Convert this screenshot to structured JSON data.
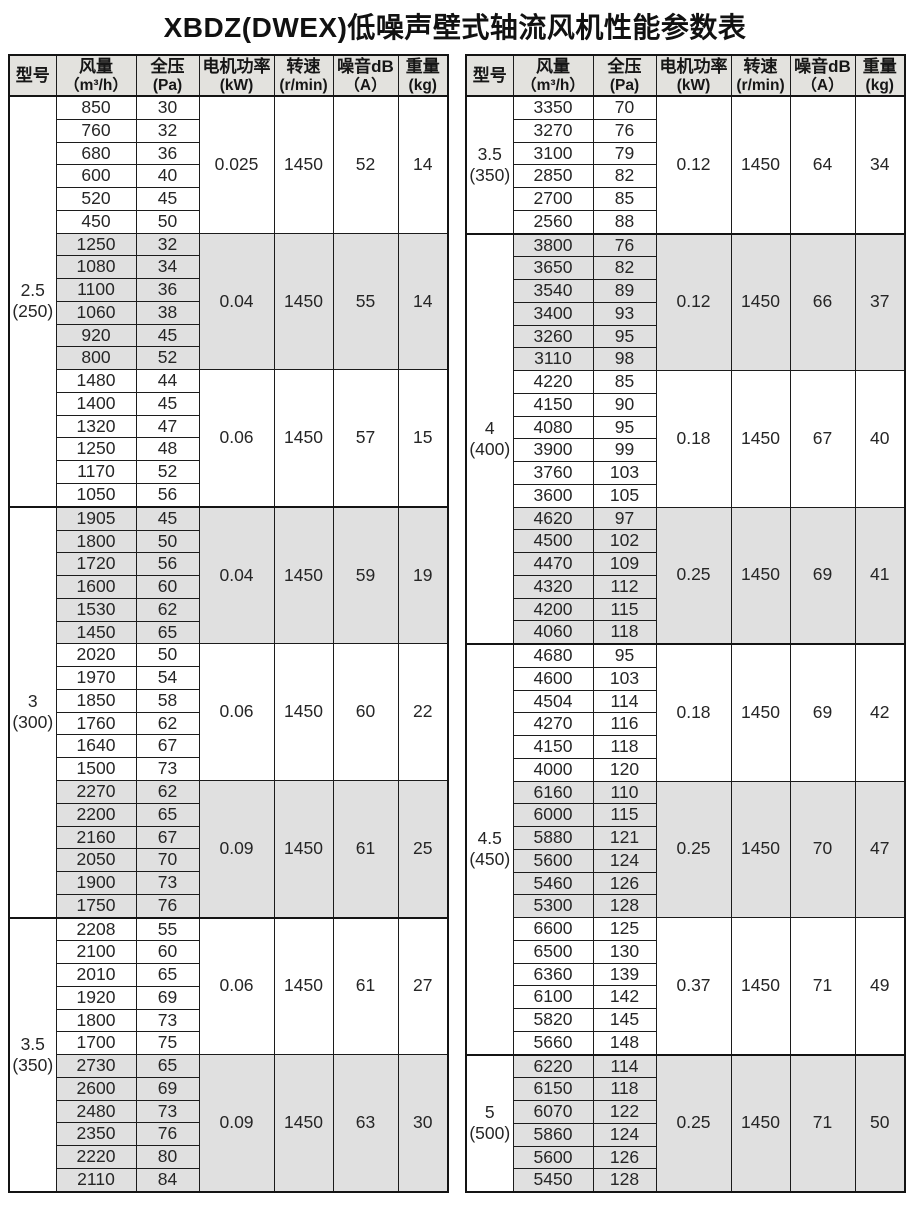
{
  "title": "XBDZ(DWEX)低噪声壁式轴流风机性能参数表",
  "columns": [
    {
      "line1": "型号",
      "line2": ""
    },
    {
      "line1": "风量",
      "line2": "（m³/h）"
    },
    {
      "line1": "全压",
      "line2": "(Pa)"
    },
    {
      "line1": "电机功率",
      "line2": "(kW)"
    },
    {
      "line1": "转速",
      "line2": "(r/min)"
    },
    {
      "line1": "噪音dB",
      "line2": "（A）"
    },
    {
      "line1": "重量",
      "line2": "(kg)"
    }
  ],
  "colors": {
    "header_bg": "#e3e2de",
    "shaded_row_bg": "#e0e0e0",
    "border": "#1c1c1c",
    "text": "#262626"
  },
  "tables": [
    {
      "id": "left",
      "sections": [
        {
          "model_line1": "2.5",
          "model_line2": "(250)",
          "groups": [
            {
              "shaded": false,
              "rows": [
                [
                  "850",
                  "30"
                ],
                [
                  "760",
                  "32"
                ],
                [
                  "680",
                  "36"
                ],
                [
                  "600",
                  "40"
                ],
                [
                  "520",
                  "45"
                ],
                [
                  "450",
                  "50"
                ]
              ],
              "power": "0.025",
              "speed": "1450",
              "noise": "52",
              "weight": "14"
            },
            {
              "shaded": true,
              "rows": [
                [
                  "1250",
                  "32"
                ],
                [
                  "1080",
                  "34"
                ],
                [
                  "1100",
                  "36"
                ],
                [
                  "1060",
                  "38"
                ],
                [
                  "920",
                  "45"
                ],
                [
                  "800",
                  "52"
                ]
              ],
              "power": "0.04",
              "speed": "1450",
              "noise": "55",
              "weight": "14"
            },
            {
              "shaded": false,
              "rows": [
                [
                  "1480",
                  "44"
                ],
                [
                  "1400",
                  "45"
                ],
                [
                  "1320",
                  "47"
                ],
                [
                  "1250",
                  "48"
                ],
                [
                  "1170",
                  "52"
                ],
                [
                  "1050",
                  "56"
                ]
              ],
              "power": "0.06",
              "speed": "1450",
              "noise": "57",
              "weight": "15"
            }
          ]
        },
        {
          "model_line1": "3",
          "model_line2": "(300)",
          "groups": [
            {
              "shaded": true,
              "rows": [
                [
                  "1905",
                  "45"
                ],
                [
                  "1800",
                  "50"
                ],
                [
                  "1720",
                  "56"
                ],
                [
                  "1600",
                  "60"
                ],
                [
                  "1530",
                  "62"
                ],
                [
                  "1450",
                  "65"
                ]
              ],
              "power": "0.04",
              "speed": "1450",
              "noise": "59",
              "weight": "19"
            },
            {
              "shaded": false,
              "rows": [
                [
                  "2020",
                  "50"
                ],
                [
                  "1970",
                  "54"
                ],
                [
                  "1850",
                  "58"
                ],
                [
                  "1760",
                  "62"
                ],
                [
                  "1640",
                  "67"
                ],
                [
                  "1500",
                  "73"
                ]
              ],
              "power": "0.06",
              "speed": "1450",
              "noise": "60",
              "weight": "22"
            },
            {
              "shaded": true,
              "rows": [
                [
                  "2270",
                  "62"
                ],
                [
                  "2200",
                  "65"
                ],
                [
                  "2160",
                  "67"
                ],
                [
                  "2050",
                  "70"
                ],
                [
                  "1900",
                  "73"
                ],
                [
                  "1750",
                  "76"
                ]
              ],
              "power": "0.09",
              "speed": "1450",
              "noise": "61",
              "weight": "25"
            }
          ]
        },
        {
          "model_line1": "3.5",
          "model_line2": "(350)",
          "groups": [
            {
              "shaded": false,
              "rows": [
                [
                  "2208",
                  "55"
                ],
                [
                  "2100",
                  "60"
                ],
                [
                  "2010",
                  "65"
                ],
                [
                  "1920",
                  "69"
                ],
                [
                  "1800",
                  "73"
                ],
                [
                  "1700",
                  "75"
                ]
              ],
              "power": "0.06",
              "speed": "1450",
              "noise": "61",
              "weight": "27"
            },
            {
              "shaded": true,
              "rows": [
                [
                  "2730",
                  "65"
                ],
                [
                  "2600",
                  "69"
                ],
                [
                  "2480",
                  "73"
                ],
                [
                  "2350",
                  "76"
                ],
                [
                  "2220",
                  "80"
                ],
                [
                  "2110",
                  "84"
                ]
              ],
              "power": "0.09",
              "speed": "1450",
              "noise": "63",
              "weight": "30"
            }
          ]
        }
      ]
    },
    {
      "id": "right",
      "sections": [
        {
          "model_line1": "3.5",
          "model_line2": "(350)",
          "groups": [
            {
              "shaded": false,
              "rows": [
                [
                  "3350",
                  "70"
                ],
                [
                  "3270",
                  "76"
                ],
                [
                  "3100",
                  "79"
                ],
                [
                  "2850",
                  "82"
                ],
                [
                  "2700",
                  "85"
                ],
                [
                  "2560",
                  "88"
                ]
              ],
              "power": "0.12",
              "speed": "1450",
              "noise": "64",
              "weight": "34"
            }
          ]
        },
        {
          "model_line1": "4",
          "model_line2": "(400)",
          "groups": [
            {
              "shaded": true,
              "rows": [
                [
                  "3800",
                  "76"
                ],
                [
                  "3650",
                  "82"
                ],
                [
                  "3540",
                  "89"
                ],
                [
                  "3400",
                  "93"
                ],
                [
                  "3260",
                  "95"
                ],
                [
                  "3110",
                  "98"
                ]
              ],
              "power": "0.12",
              "speed": "1450",
              "noise": "66",
              "weight": "37"
            },
            {
              "shaded": false,
              "rows": [
                [
                  "4220",
                  "85"
                ],
                [
                  "4150",
                  "90"
                ],
                [
                  "4080",
                  "95"
                ],
                [
                  "3900",
                  "99"
                ],
                [
                  "3760",
                  "103"
                ],
                [
                  "3600",
                  "105"
                ]
              ],
              "power": "0.18",
              "speed": "1450",
              "noise": "67",
              "weight": "40"
            },
            {
              "shaded": true,
              "rows": [
                [
                  "4620",
                  "97"
                ],
                [
                  "4500",
                  "102"
                ],
                [
                  "4470",
                  "109"
                ],
                [
                  "4320",
                  "112"
                ],
                [
                  "4200",
                  "115"
                ],
                [
                  "4060",
                  "118"
                ]
              ],
              "power": "0.25",
              "speed": "1450",
              "noise": "69",
              "weight": "41"
            }
          ]
        },
        {
          "model_line1": "4.5",
          "model_line2": "(450)",
          "groups": [
            {
              "shaded": false,
              "rows": [
                [
                  "4680",
                  "95"
                ],
                [
                  "4600",
                  "103"
                ],
                [
                  "4504",
                  "114"
                ],
                [
                  "4270",
                  "116"
                ],
                [
                  "4150",
                  "118"
                ],
                [
                  "4000",
                  "120"
                ]
              ],
              "power": "0.18",
              "speed": "1450",
              "noise": "69",
              "weight": "42"
            },
            {
              "shaded": true,
              "rows": [
                [
                  "6160",
                  "110"
                ],
                [
                  "6000",
                  "115"
                ],
                [
                  "5880",
                  "121"
                ],
                [
                  "5600",
                  "124"
                ],
                [
                  "5460",
                  "126"
                ],
                [
                  "5300",
                  "128"
                ]
              ],
              "power": "0.25",
              "speed": "1450",
              "noise": "70",
              "weight": "47"
            },
            {
              "shaded": false,
              "rows": [
                [
                  "6600",
                  "125"
                ],
                [
                  "6500",
                  "130"
                ],
                [
                  "6360",
                  "139"
                ],
                [
                  "6100",
                  "142"
                ],
                [
                  "5820",
                  "145"
                ],
                [
                  "5660",
                  "148"
                ]
              ],
              "power": "0.37",
              "speed": "1450",
              "noise": "71",
              "weight": "49"
            }
          ]
        },
        {
          "model_line1": "5",
          "model_line2": "(500)",
          "groups": [
            {
              "shaded": true,
              "rows": [
                [
                  "6220",
                  "114"
                ],
                [
                  "6150",
                  "118"
                ],
                [
                  "6070",
                  "122"
                ],
                [
                  "5860",
                  "124"
                ],
                [
                  "5600",
                  "126"
                ],
                [
                  "5450",
                  "128"
                ]
              ],
              "power": "0.25",
              "speed": "1450",
              "noise": "71",
              "weight": "50"
            }
          ]
        }
      ]
    }
  ]
}
